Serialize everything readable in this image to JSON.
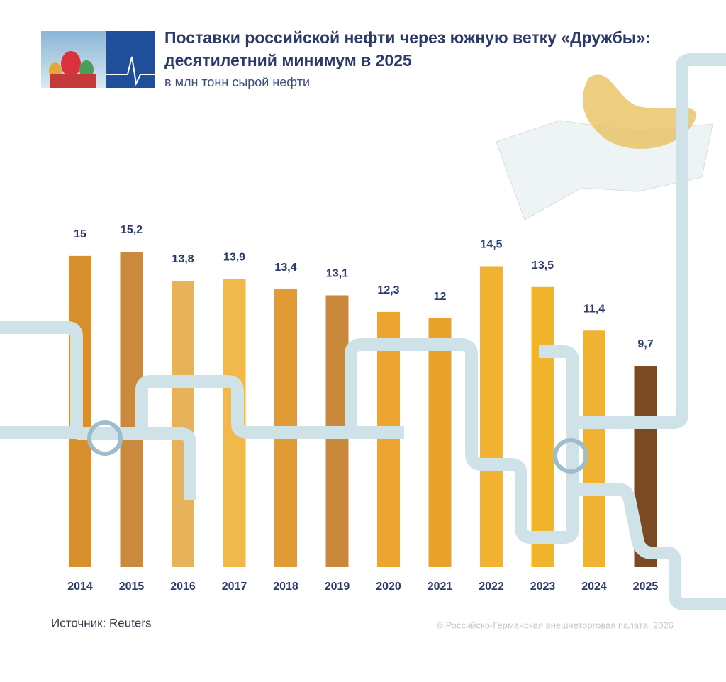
{
  "chart_data": {
    "type": "bar",
    "title": [
      "Поставки российской нефти через южную ветку «Дружбы»:",
      "десятилетний минимум в 2025"
    ],
    "subtitle": "в млн тонн сырой нефти",
    "categories": [
      "2014",
      "2015",
      "2016",
      "2017",
      "2018",
      "2019",
      "2020",
      "2021",
      "2022",
      "2023",
      "2024",
      "2025"
    ],
    "values": [
      15,
      15.2,
      13.8,
      13.9,
      13.4,
      13.1,
      12.3,
      12,
      14.5,
      13.5,
      11.4,
      9.7
    ],
    "value_labels": [
      "15",
      "15,2",
      "13,8",
      "13,9",
      "13,4",
      "13,1",
      "12,3",
      "12",
      "14,5",
      "13,5",
      "11,4",
      "9,7"
    ],
    "colors": [
      "#d8902e",
      "#c98a3e",
      "#e7b35a",
      "#f0b94a",
      "#e09b35",
      "#c9893a",
      "#eda532",
      "#e8a22c",
      "#f2b232",
      "#f1b52d",
      "#f0b232",
      "#7a4a22"
    ],
    "source": "Источник: Reuters",
    "copyright": "© Российско-Германская внешнеторговая палата, 2026"
  }
}
